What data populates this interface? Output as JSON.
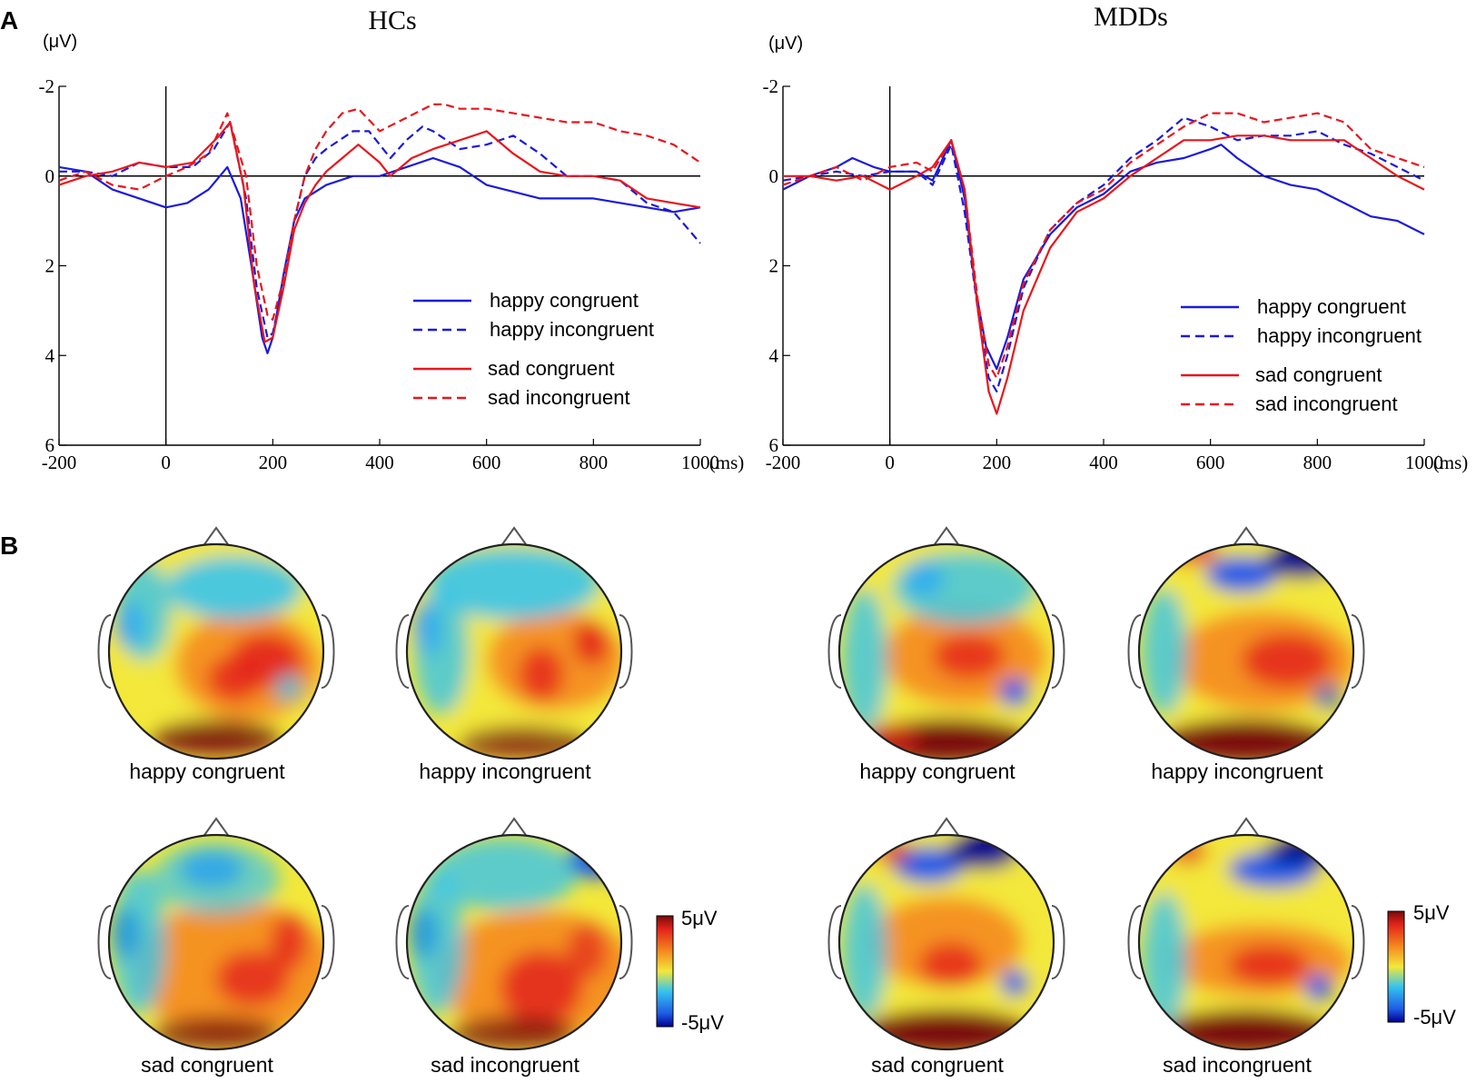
{
  "panel_labels": {
    "a": "A",
    "b": "B"
  },
  "chart_data": [
    {
      "type": "line",
      "title": "HCs",
      "ylabel": "(μV)",
      "xlabel": "(ms)",
      "xlim": [
        -200,
        1000
      ],
      "ylim": [
        -2,
        6
      ],
      "y_inverted": true,
      "x_ticks": [
        "-200",
        "0",
        "200",
        "400",
        "600",
        "800",
        "1000"
      ],
      "y_ticks": [
        "-2",
        "0",
        "2",
        "4",
        "6"
      ],
      "legend": [
        "happy congruent",
        "happy incongruent",
        "sad congruent",
        "sad incongruent"
      ],
      "legend_position": "lower-right",
      "series": [
        {
          "name": "happy congruent",
          "color": "#1a1adc",
          "dash": false,
          "x": [
            -200,
            -150,
            -100,
            -50,
            0,
            40,
            80,
            115,
            140,
            160,
            180,
            190,
            200,
            220,
            240,
            260,
            300,
            350,
            400,
            450,
            500,
            550,
            600,
            700,
            800,
            900,
            950,
            1000
          ],
          "y": [
            -0.2,
            -0.1,
            0.3,
            0.5,
            0.7,
            0.6,
            0.3,
            -0.2,
            0.5,
            2.0,
            3.6,
            3.95,
            3.6,
            2.2,
            1.0,
            0.5,
            0.2,
            0.0,
            0.0,
            -0.2,
            -0.4,
            -0.2,
            0.2,
            0.5,
            0.5,
            0.7,
            0.8,
            0.7
          ]
        },
        {
          "name": "happy incongruent",
          "color": "#1a1adc",
          "dash": true,
          "x": [
            -200,
            -150,
            -100,
            -50,
            0,
            50,
            90,
            120,
            150,
            170,
            190,
            200,
            220,
            240,
            260,
            280,
            300,
            350,
            380,
            420,
            450,
            480,
            500,
            550,
            600,
            650,
            700,
            750,
            800,
            850,
            900,
            950,
            1000
          ],
          "y": [
            -0.1,
            -0.1,
            0.0,
            -0.3,
            -0.2,
            -0.2,
            -0.6,
            -1.2,
            0.5,
            2.5,
            3.6,
            3.5,
            2.4,
            1.0,
            0.0,
            -0.4,
            -0.6,
            -1.0,
            -1.0,
            -0.4,
            -0.8,
            -1.1,
            -1.0,
            -0.6,
            -0.7,
            -0.9,
            -0.5,
            0.0,
            0.0,
            0.1,
            0.6,
            0.8,
            1.5
          ]
        },
        {
          "name": "sad congruent",
          "color": "#e8161c",
          "dash": false,
          "x": [
            -200,
            -150,
            -100,
            -50,
            0,
            50,
            100,
            120,
            145,
            165,
            185,
            200,
            220,
            240,
            260,
            280,
            300,
            330,
            360,
            400,
            420,
            460,
            500,
            550,
            600,
            650,
            700,
            750,
            800,
            850,
            900,
            950,
            1000
          ],
          "y": [
            0.2,
            0.0,
            -0.1,
            -0.3,
            -0.2,
            -0.3,
            -0.9,
            -1.2,
            0.2,
            2.4,
            3.7,
            3.6,
            2.5,
            1.2,
            0.6,
            0.2,
            -0.1,
            -0.4,
            -0.7,
            -0.3,
            0.0,
            -0.4,
            -0.6,
            -0.8,
            -1.0,
            -0.5,
            -0.1,
            0.0,
            0.0,
            0.1,
            0.5,
            0.6,
            0.7
          ]
        },
        {
          "name": "sad incongruent",
          "color": "#e8161c",
          "dash": true,
          "x": [
            -200,
            -150,
            -100,
            -50,
            0,
            40,
            80,
            115,
            150,
            170,
            190,
            200,
            220,
            240,
            260,
            280,
            300,
            330,
            360,
            400,
            450,
            500,
            520,
            550,
            600,
            650,
            700,
            750,
            800,
            850,
            900,
            950,
            1000
          ],
          "y": [
            0.1,
            -0.1,
            0.2,
            0.3,
            0.0,
            -0.2,
            -0.5,
            -1.4,
            0.0,
            2.0,
            3.1,
            3.2,
            2.3,
            1.0,
            0.0,
            -0.6,
            -1.0,
            -1.4,
            -1.5,
            -1.0,
            -1.3,
            -1.6,
            -1.6,
            -1.5,
            -1.5,
            -1.4,
            -1.3,
            -1.2,
            -1.2,
            -1.0,
            -0.9,
            -0.7,
            -0.3
          ]
        }
      ]
    },
    {
      "type": "line",
      "title": "MDDs",
      "ylabel": "(μV)",
      "xlabel": "(ms)",
      "xlim": [
        -200,
        1000
      ],
      "ylim": [
        -2,
        6
      ],
      "y_inverted": true,
      "x_ticks": [
        "-200",
        "0",
        "200",
        "400",
        "600",
        "800",
        "1000"
      ],
      "y_ticks": [
        "-2",
        "0",
        "2",
        "4",
        "6"
      ],
      "legend": [
        "happy congruent",
        "happy incongruent",
        "sad congruent",
        "sad incongruent"
      ],
      "legend_position": "lower-right",
      "series": [
        {
          "name": "happy congruent",
          "color": "#1a1adc",
          "dash": false,
          "x": [
            -200,
            -150,
            -100,
            -70,
            -30,
            0,
            50,
            80,
            115,
            140,
            160,
            180,
            200,
            220,
            250,
            300,
            350,
            400,
            450,
            500,
            550,
            600,
            620,
            650,
            700,
            750,
            800,
            850,
            900,
            950,
            1000
          ],
          "y": [
            0.3,
            0.0,
            -0.2,
            -0.4,
            -0.2,
            -0.1,
            -0.1,
            0.1,
            -0.8,
            0.5,
            2.5,
            3.8,
            4.3,
            3.6,
            2.3,
            1.3,
            0.7,
            0.4,
            -0.1,
            -0.3,
            -0.4,
            -0.6,
            -0.7,
            -0.4,
            0.0,
            0.2,
            0.3,
            0.6,
            0.9,
            1.0,
            1.3
          ]
        },
        {
          "name": "happy incongruent",
          "color": "#1a1adc",
          "dash": true,
          "x": [
            -200,
            -150,
            -100,
            -50,
            0,
            50,
            80,
            115,
            140,
            165,
            185,
            200,
            220,
            250,
            300,
            350,
            400,
            450,
            500,
            550,
            600,
            650,
            700,
            750,
            800,
            850,
            900,
            950,
            1000
          ],
          "y": [
            0.1,
            0.0,
            -0.1,
            0.0,
            -0.1,
            -0.1,
            0.2,
            -0.7,
            0.8,
            3.0,
            4.5,
            4.8,
            4.0,
            2.5,
            1.2,
            0.6,
            0.2,
            -0.4,
            -0.8,
            -1.3,
            -1.1,
            -0.8,
            -0.9,
            -0.9,
            -1.0,
            -0.7,
            -0.5,
            -0.2,
            0.1
          ]
        },
        {
          "name": "sad congruent",
          "color": "#e8161c",
          "dash": false,
          "x": [
            -200,
            -150,
            -100,
            -50,
            0,
            50,
            80,
            115,
            140,
            165,
            185,
            200,
            220,
            250,
            300,
            350,
            400,
            450,
            500,
            550,
            600,
            650,
            700,
            750,
            800,
            850,
            900,
            950,
            1000
          ],
          "y": [
            0.0,
            0.0,
            0.1,
            0.0,
            0.3,
            0.0,
            -0.2,
            -0.8,
            0.3,
            3.0,
            4.8,
            5.3,
            4.5,
            3.0,
            1.6,
            0.8,
            0.5,
            0.0,
            -0.4,
            -0.8,
            -0.8,
            -0.9,
            -0.9,
            -0.8,
            -0.8,
            -0.8,
            -0.4,
            0.0,
            0.3
          ]
        },
        {
          "name": "sad incongruent",
          "color": "#e8161c",
          "dash": true,
          "x": [
            -200,
            -150,
            -100,
            -50,
            0,
            50,
            80,
            115,
            140,
            165,
            185,
            200,
            220,
            250,
            300,
            350,
            400,
            450,
            500,
            550,
            600,
            650,
            700,
            750,
            800,
            850,
            900,
            950,
            1000
          ],
          "y": [
            0.2,
            0.0,
            -0.2,
            0.1,
            -0.2,
            -0.3,
            -0.1,
            -0.8,
            0.3,
            2.8,
            4.2,
            4.5,
            3.8,
            2.4,
            1.2,
            0.6,
            0.3,
            -0.3,
            -0.7,
            -1.1,
            -1.4,
            -1.4,
            -1.2,
            -1.3,
            -1.4,
            -1.2,
            -0.6,
            -0.4,
            -0.2
          ]
        }
      ]
    }
  ],
  "topomaps": {
    "items": [
      {
        "label": "happy congruent",
        "variant": 0
      },
      {
        "label": "happy incongruent",
        "variant": 1
      },
      {
        "label": "sad congruent",
        "variant": 2
      },
      {
        "label": "sad incongruent",
        "variant": 3
      },
      {
        "label": "happy congruent",
        "variant": 4
      },
      {
        "label": "happy incongruent",
        "variant": 5
      },
      {
        "label": "sad congruent",
        "variant": 6
      },
      {
        "label": "sad incongruent",
        "variant": 7
      }
    ],
    "colorbar_max": "5μV",
    "colorbar_min": "-5μV",
    "colors": {
      "dark_blue": "#00008f",
      "blue": "#1e5ce6",
      "cyan": "#37c4ee",
      "yellow": "#f3e83a",
      "orange": "#f58a1e",
      "red": "#e3231a",
      "dark_red": "#7a0a0a"
    }
  }
}
